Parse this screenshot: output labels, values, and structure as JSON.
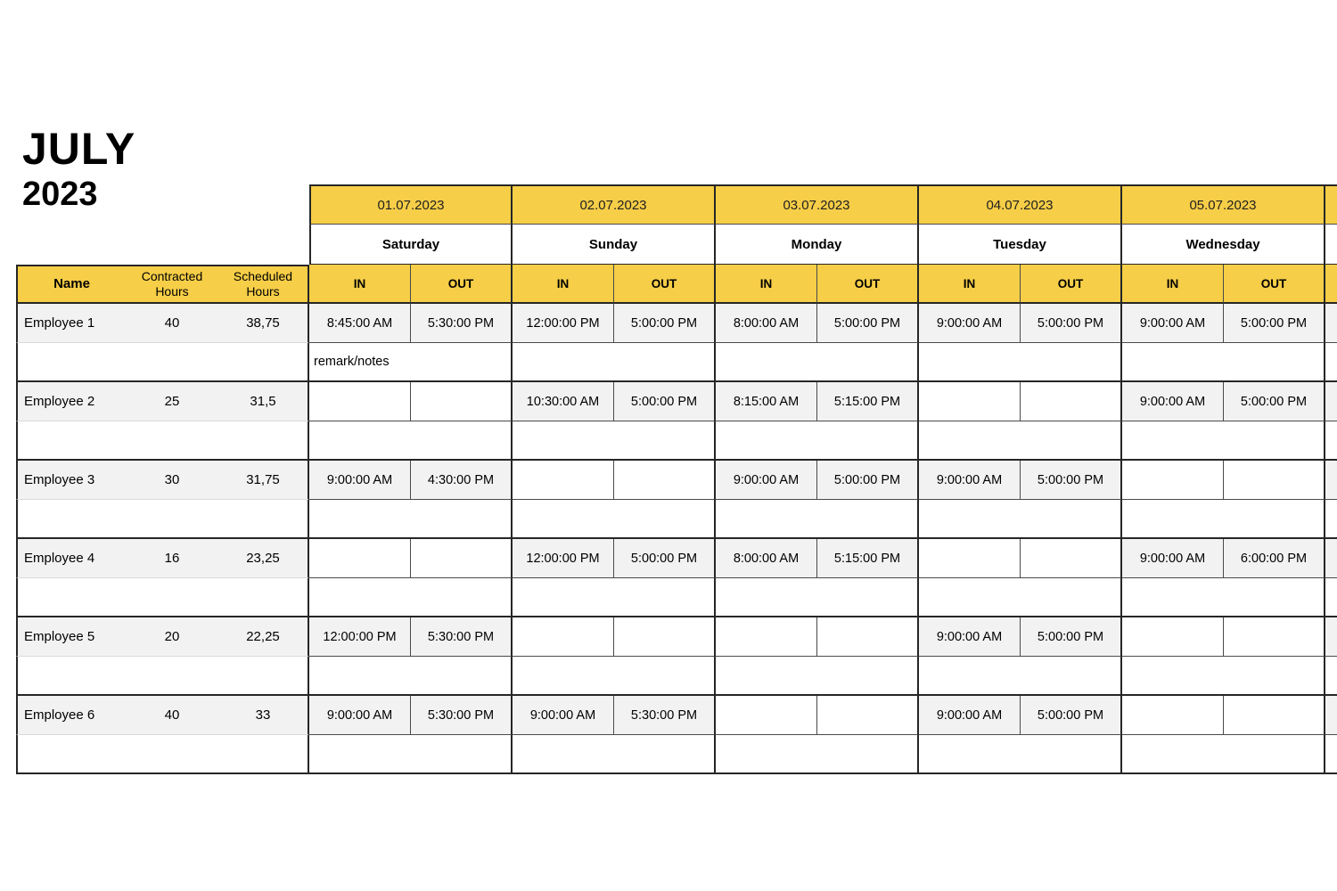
{
  "title": {
    "month": "JULY",
    "year": "2023"
  },
  "colors": {
    "header_yellow": "#F6CE47",
    "filled_gray": "#F2F2F2",
    "grid_line": "#4a4a4a",
    "grid_heavy": "#262626"
  },
  "header": {
    "name": "Name",
    "contracted": "Contracted Hours",
    "scheduled": "Scheduled Hours",
    "in_label": "IN",
    "out_label": "OUT"
  },
  "days": [
    {
      "date": "01.07.2023",
      "weekday": "Saturday"
    },
    {
      "date": "02.07.2023",
      "weekday": "Sunday"
    },
    {
      "date": "03.07.2023",
      "weekday": "Monday"
    },
    {
      "date": "04.07.2023",
      "weekday": "Tuesday"
    },
    {
      "date": "05.07.2023",
      "weekday": "Wednesday"
    }
  ],
  "employees": [
    {
      "name": "Employee 1",
      "contracted": "40",
      "scheduled": "38,75",
      "times": [
        [
          "8:45:00 AM",
          "5:30:00 PM"
        ],
        [
          "12:00:00 PM",
          "5:00:00 PM"
        ],
        [
          "8:00:00 AM",
          "5:00:00 PM"
        ],
        [
          "9:00:00 AM",
          "5:00:00 PM"
        ],
        [
          "9:00:00 AM",
          "5:00:00 PM"
        ]
      ],
      "remarks": [
        "remark/notes",
        "",
        "",
        "",
        ""
      ]
    },
    {
      "name": "Employee 2",
      "contracted": "25",
      "scheduled": "31,5",
      "times": [
        [
          "",
          ""
        ],
        [
          "10:30:00 AM",
          "5:00:00 PM"
        ],
        [
          "8:15:00 AM",
          "5:15:00 PM"
        ],
        [
          "",
          ""
        ],
        [
          "9:00:00 AM",
          "5:00:00 PM"
        ]
      ],
      "remarks": [
        "",
        "",
        "",
        "",
        ""
      ]
    },
    {
      "name": "Employee 3",
      "contracted": "30",
      "scheduled": "31,75",
      "times": [
        [
          "9:00:00 AM",
          "4:30:00 PM"
        ],
        [
          "",
          ""
        ],
        [
          "9:00:00 AM",
          "5:00:00 PM"
        ],
        [
          "9:00:00 AM",
          "5:00:00 PM"
        ],
        [
          "",
          ""
        ]
      ],
      "remarks": [
        "",
        "",
        "",
        "",
        ""
      ]
    },
    {
      "name": "Employee 4",
      "contracted": "16",
      "scheduled": "23,25",
      "times": [
        [
          "",
          ""
        ],
        [
          "12:00:00 PM",
          "5:00:00 PM"
        ],
        [
          "8:00:00 AM",
          "5:15:00 PM"
        ],
        [
          "",
          ""
        ],
        [
          "9:00:00 AM",
          "6:00:00 PM"
        ]
      ],
      "remarks": [
        "",
        "",
        "",
        "",
        ""
      ]
    },
    {
      "name": "Employee 5",
      "contracted": "20",
      "scheduled": "22,25",
      "times": [
        [
          "12:00:00 PM",
          "5:30:00 PM"
        ],
        [
          "",
          ""
        ],
        [
          "",
          ""
        ],
        [
          "9:00:00 AM",
          "5:00:00 PM"
        ],
        [
          "",
          ""
        ]
      ],
      "remarks": [
        "",
        "",
        "",
        "",
        ""
      ]
    },
    {
      "name": "Employee 6",
      "contracted": "40",
      "scheduled": "33",
      "times": [
        [
          "9:00:00 AM",
          "5:30:00 PM"
        ],
        [
          "9:00:00 AM",
          "5:30:00 PM"
        ],
        [
          "",
          ""
        ],
        [
          "9:00:00 AM",
          "5:00:00 PM"
        ],
        [
          "",
          ""
        ]
      ],
      "remarks": [
        "",
        "",
        "",
        "",
        ""
      ]
    }
  ]
}
